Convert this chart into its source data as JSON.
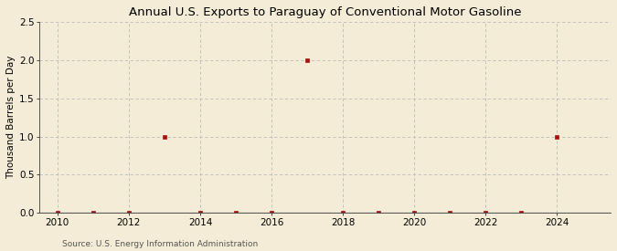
{
  "title": "Annual U.S. Exports to Paraguay of Conventional Motor Gasoline",
  "ylabel": "Thousand Barrels per Day",
  "source": "Source: U.S. Energy Information Administration",
  "background_color": "#f5ecd7",
  "plot_background_color": "#f5ecd7",
  "marker_color": "#aa1111",
  "grid_color": "#bbbbbb",
  "xlim": [
    2009.5,
    2025.5
  ],
  "ylim": [
    0.0,
    2.5
  ],
  "yticks": [
    0.0,
    0.5,
    1.0,
    1.5,
    2.0,
    2.5
  ],
  "xticks": [
    2010,
    2012,
    2014,
    2016,
    2018,
    2020,
    2022,
    2024
  ],
  "data": {
    "years": [
      2010,
      2011,
      2012,
      2013,
      2014,
      2015,
      2016,
      2017,
      2018,
      2019,
      2020,
      2021,
      2022,
      2023,
      2024
    ],
    "values": [
      0.0,
      0.0,
      0.0,
      1.0,
      0.0,
      0.0,
      0.0,
      2.0,
      0.0,
      0.0,
      0.0,
      0.0,
      0.0,
      0.0,
      1.0
    ]
  }
}
